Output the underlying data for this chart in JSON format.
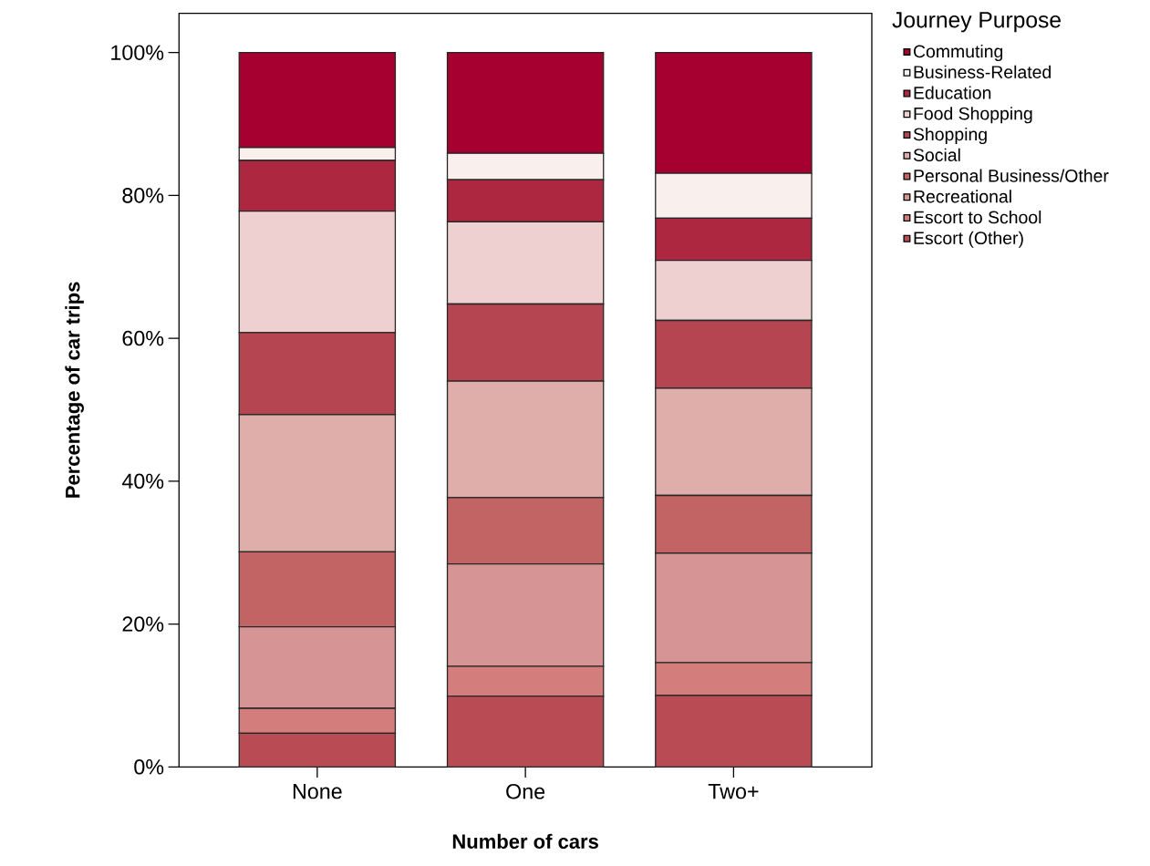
{
  "chart_data": {
    "type": "bar",
    "stacked": true,
    "xlabel": "Number of cars",
    "ylabel": "Percentage of car trips",
    "legend_title": "Journey Purpose",
    "legend": "right",
    "categories": [
      "None",
      "One",
      "Two+"
    ],
    "ylim": [
      0,
      105.5
    ],
    "yticks": [
      {
        "value": 0,
        "label": "0%"
      },
      {
        "value": 20,
        "label": "20%"
      },
      {
        "value": 40,
        "label": "40%"
      },
      {
        "value": 60,
        "label": "60%"
      },
      {
        "value": 80,
        "label": "80%"
      },
      {
        "value": 100,
        "label": "100%"
      }
    ],
    "series": [
      {
        "name": "Escort (Other)",
        "color": "#b84b53",
        "values": [
          4.7,
          9.9,
          10.0
        ]
      },
      {
        "name": "Escort to School",
        "color": "#d37d7c",
        "values": [
          3.5,
          4.2,
          4.6
        ]
      },
      {
        "name": "Recreational",
        "color": "#d69594",
        "values": [
          11.4,
          14.3,
          15.3
        ]
      },
      {
        "name": "Personal Business/Other",
        "color": "#c26364",
        "values": [
          10.5,
          9.3,
          8.1
        ]
      },
      {
        "name": "Social",
        "color": "#dfaeab",
        "values": [
          19.2,
          16.3,
          15.0
        ]
      },
      {
        "name": "Shopping",
        "color": "#b54550",
        "values": [
          11.5,
          10.8,
          9.5
        ]
      },
      {
        "name": "Food Shopping",
        "color": "#eed0d0",
        "values": [
          17.0,
          11.5,
          8.4
        ]
      },
      {
        "name": "Education",
        "color": "#ad2740",
        "values": [
          7.1,
          5.9,
          5.9
        ]
      },
      {
        "name": "Business-Related",
        "color": "#f9efed",
        "values": [
          1.8,
          3.7,
          6.3
        ]
      },
      {
        "name": "Commuting",
        "color": "#a5002f",
        "values": [
          13.3,
          14.1,
          16.9
        ]
      }
    ]
  }
}
